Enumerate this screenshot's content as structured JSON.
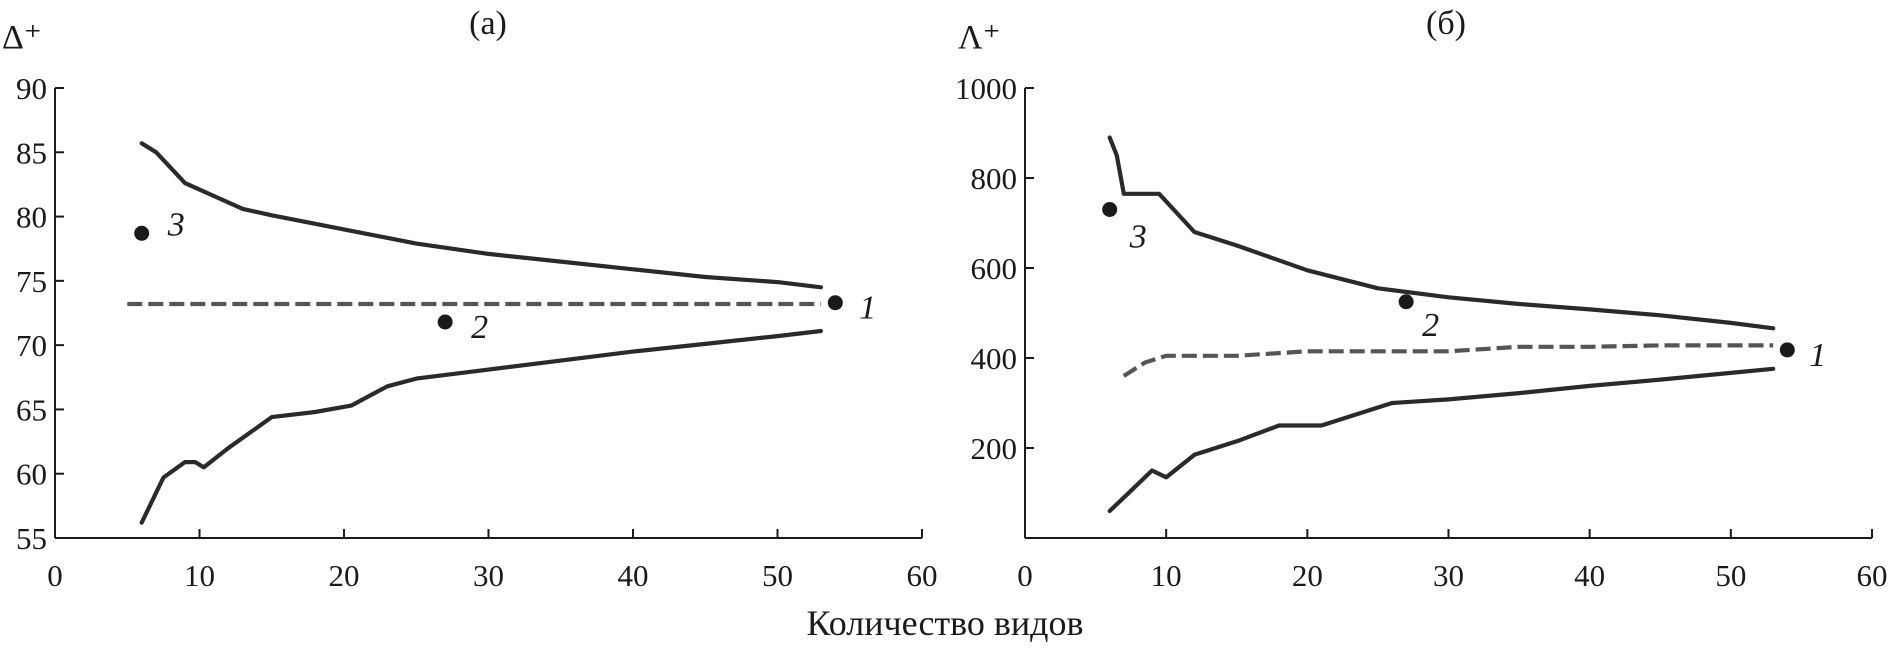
{
  "figure": {
    "xlabel": "Количество видов"
  },
  "chart_data": [
    {
      "type": "line",
      "panel_label": "(a)",
      "ylabel": "Δ⁺",
      "xlabel": "",
      "xlim": [
        0,
        60
      ],
      "ylim": [
        55,
        90
      ],
      "xticks": [
        0,
        10,
        20,
        30,
        40,
        50,
        60
      ],
      "yticks": [
        55,
        60,
        65,
        70,
        75,
        80,
        85,
        90
      ],
      "grid": false,
      "legend": "none",
      "series": [
        {
          "role": "upper",
          "style": "solid",
          "x": [
            6,
            7,
            8,
            9,
            11,
            13,
            15,
            20,
            25,
            30,
            35,
            40,
            45,
            50,
            53
          ],
          "y": [
            85.7,
            85,
            83.8,
            82.6,
            81.6,
            80.6,
            80.1,
            79,
            77.9,
            77.1,
            76.5,
            75.9,
            75.3,
            74.9,
            74.5
          ]
        },
        {
          "role": "mean",
          "style": "dashed",
          "x": [
            5,
            53
          ],
          "y": [
            73.2,
            73.2
          ]
        },
        {
          "role": "lower",
          "style": "solid",
          "x": [
            6,
            7.5,
            9,
            9.7,
            10.3,
            12,
            15,
            18,
            20.5,
            23,
            25,
            30,
            35,
            40,
            45,
            50,
            53
          ],
          "y": [
            56.2,
            59.7,
            60.9,
            60.9,
            60.5,
            62,
            64.4,
            64.8,
            65.3,
            66.8,
            67.4,
            68.1,
            68.8,
            69.5,
            70.1,
            70.7,
            71.1
          ]
        }
      ],
      "points": [
        {
          "label": "3",
          "x": 6,
          "y": 78.7
        },
        {
          "label": "2",
          "x": 27,
          "y": 71.8
        },
        {
          "label": "1",
          "x": 54,
          "y": 73.3
        }
      ]
    },
    {
      "type": "line",
      "panel_label": "(б)",
      "ylabel": "Λ⁺",
      "xlabel": "",
      "xlim": [
        0,
        60
      ],
      "ylim": [
        0,
        1000
      ],
      "xticks": [
        0,
        10,
        20,
        30,
        40,
        50,
        60
      ],
      "yticks": [
        200,
        400,
        600,
        800,
        1000
      ],
      "grid": false,
      "legend": "none",
      "series": [
        {
          "role": "upper",
          "style": "solid",
          "x": [
            6,
            6.5,
            7,
            9.5,
            12,
            15,
            20,
            25,
            30,
            35,
            40,
            45,
            50,
            53
          ],
          "y": [
            890,
            850,
            765,
            765,
            680,
            650,
            595,
            555,
            535,
            520,
            508,
            495,
            478,
            466
          ]
        },
        {
          "role": "mean",
          "style": "dashed",
          "x": [
            7,
            8.5,
            10,
            15,
            20,
            25,
            30,
            35,
            40,
            45,
            50,
            53
          ],
          "y": [
            360,
            390,
            405,
            405,
            415,
            415,
            415,
            425,
            425,
            428,
            428,
            428
          ]
        },
        {
          "role": "lower",
          "style": "solid",
          "x": [
            6,
            7.5,
            9,
            10,
            12,
            15,
            18,
            21,
            23,
            26,
            30,
            35,
            40,
            45,
            50,
            53
          ],
          "y": [
            60,
            105,
            150,
            135,
            185,
            215,
            250,
            250,
            270,
            300,
            308,
            322,
            338,
            352,
            367,
            376
          ]
        }
      ],
      "points": [
        {
          "label": "3",
          "x": 6,
          "y": 730
        },
        {
          "label": "2",
          "x": 27,
          "y": 525
        },
        {
          "label": "1",
          "x": 54,
          "y": 418
        }
      ]
    }
  ]
}
